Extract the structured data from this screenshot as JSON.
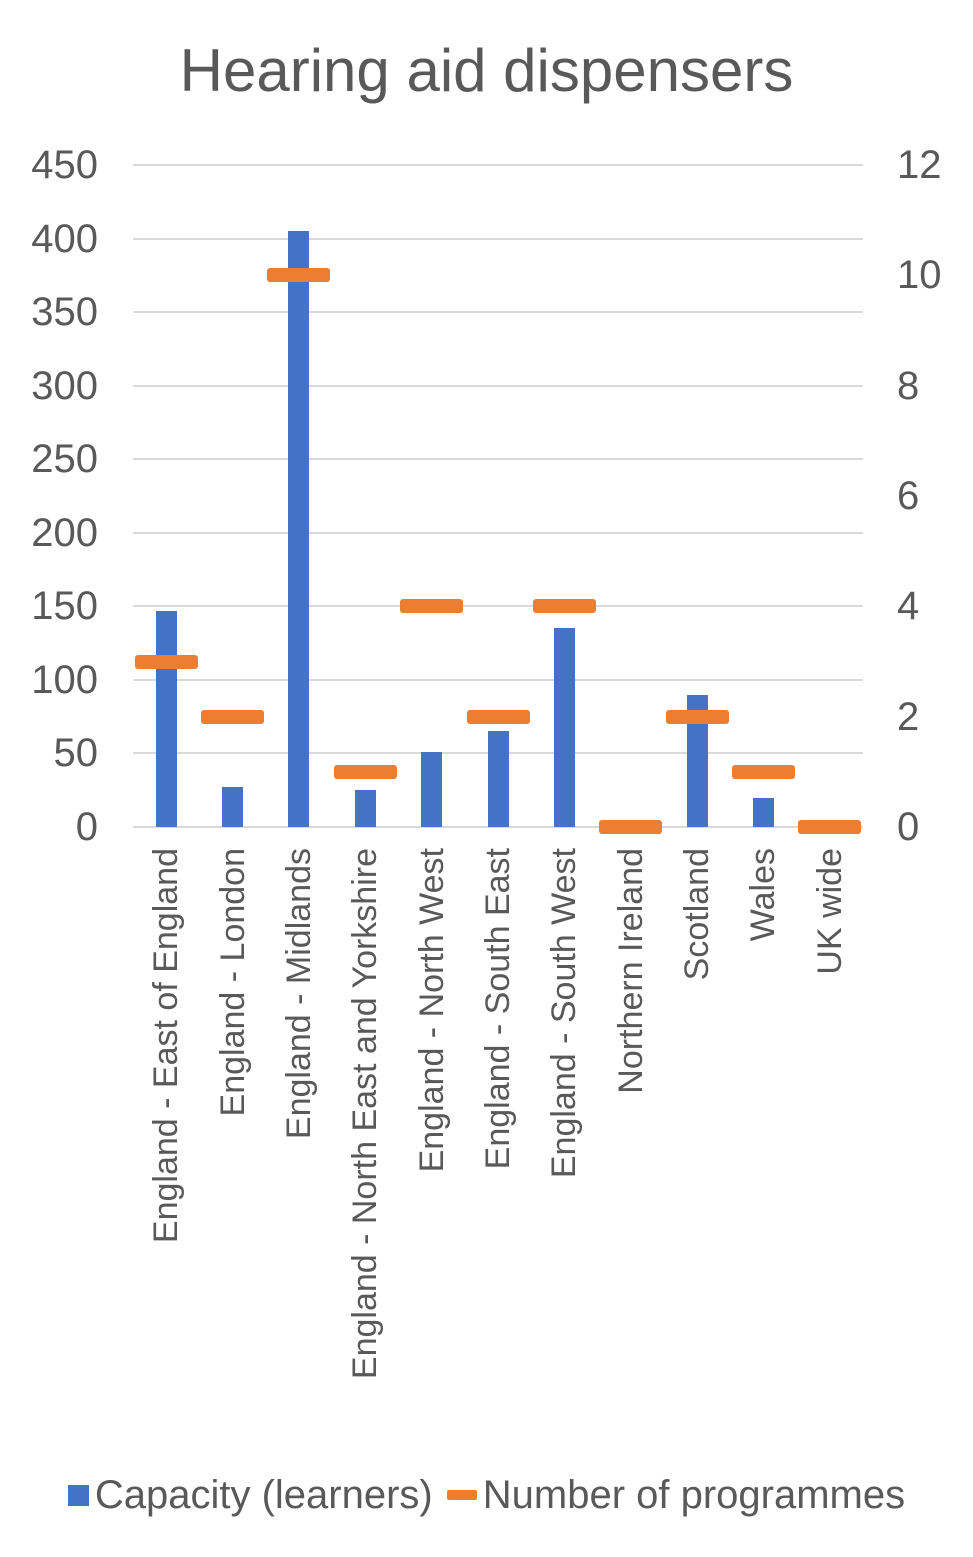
{
  "title": "Hearing aid dispensers",
  "chart_data": {
    "type": "bar",
    "title": "Hearing aid dispensers",
    "categories": [
      "England - East of England",
      "England - London",
      "England - Midlands",
      "England - North East and Yorkshire",
      "England - North West",
      "England - South East",
      "England - South West",
      "Northern Ireland",
      "Scotland",
      "Wales",
      "UK wide"
    ],
    "series": [
      {
        "name": "Capacity (learners)",
        "type": "bar",
        "axis": "left",
        "color": "#4472C4",
        "values": [
          147,
          27,
          405,
          25,
          51,
          65,
          135,
          0,
          90,
          20,
          0
        ]
      },
      {
        "name": "Number of programmes",
        "type": "dash",
        "axis": "right",
        "color": "#ED7D31",
        "values": [
          3,
          2,
          10,
          1,
          4,
          2,
          4,
          0,
          2,
          1,
          0
        ]
      }
    ],
    "left_axis": {
      "min": 0,
      "max": 450,
      "ticks": [
        450,
        400,
        350,
        300,
        250,
        200,
        150,
        100,
        50,
        0
      ]
    },
    "right_axis": {
      "min": 0,
      "max": 12,
      "ticks": [
        12,
        10,
        8,
        6,
        4,
        2,
        0
      ]
    },
    "grid": true,
    "legend_position": "bottom"
  },
  "legend": {
    "items": [
      {
        "label": "Capacity (learners)",
        "marker": "square",
        "color": "#4472C4"
      },
      {
        "label": "Number of programmes",
        "marker": "dash",
        "color": "#ED7D31"
      }
    ]
  },
  "colors": {
    "bar_blue": "#4472C4",
    "dash_orange": "#ED7D31",
    "text_gray": "#595959",
    "gridline": "#D9D9D9",
    "background": "#FFFFFF"
  }
}
